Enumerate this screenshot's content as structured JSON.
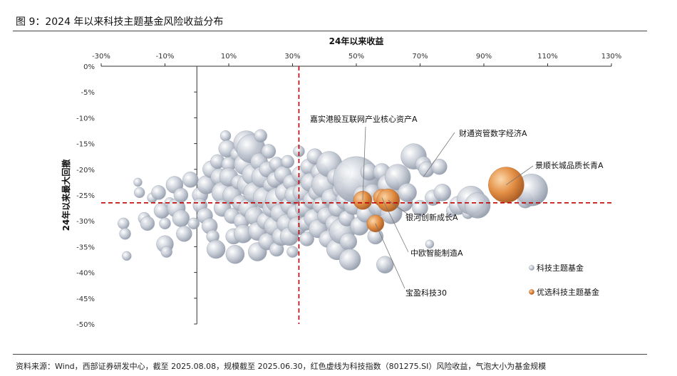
{
  "figure": {
    "title": "图 9：2024 年以来科技主题基金风险收益分布",
    "source": "资料来源：Wind，西部证券研发中心，截至 2025.08.08，规模截至 2025.06.30，红色虚线为科技指数（801275.SI）风险收益，气泡大小为基金规模"
  },
  "colors": {
    "base": "#b8c0cc",
    "highlight": "#d97f2f",
    "ref_line": "#c00000"
  },
  "chart_data": {
    "type": "scatter",
    "xlabel": "24年以来收益",
    "ylabel": "24年以来最大回撤",
    "xlim": [
      -30,
      130
    ],
    "ylim": [
      -50,
      0
    ],
    "x_ticks": [
      "-30%",
      "-10%",
      "10%",
      "30%",
      "50%",
      "70%",
      "90%",
      "110%",
      "130%"
    ],
    "y_ticks": [
      "0%",
      "-5%",
      "-10%",
      "-15%",
      "-20%",
      "-25%",
      "-30%",
      "-35%",
      "-40%",
      "-45%",
      "-50%"
    ],
    "x_axis_position": "top",
    "grid": false,
    "legend_position": "bottom-right",
    "reference": {
      "x": 32,
      "y": -26.5
    },
    "legend": [
      "科技主题基金",
      "优选科技主题基金"
    ],
    "series": [
      {
        "name": "科技主题基金",
        "points": [
          [
            -23,
            -30.5,
            1.6
          ],
          [
            -22.5,
            -32.5,
            1.6
          ],
          [
            -22,
            -36.8,
            1.3
          ],
          [
            -18.5,
            -22.5,
            1.2
          ],
          [
            -18,
            -24.5,
            1.5
          ],
          [
            -16.5,
            -29.5,
            1.7
          ],
          [
            -15.5,
            -30.5,
            2
          ],
          [
            -14,
            -25.5,
            1.4
          ],
          [
            -12,
            -24.5,
            2
          ],
          [
            -11,
            -28,
            2.2
          ],
          [
            -10,
            -30.5,
            1.6
          ],
          [
            -8.5,
            -26.5,
            1.5
          ],
          [
            -10,
            -34.5,
            2.4
          ],
          [
            -9.5,
            -36,
            1.6
          ],
          [
            -7,
            -23,
            2.4
          ],
          [
            -6.5,
            -27.5,
            2.6
          ],
          [
            -5,
            -25,
            2
          ],
          [
            -5,
            -29.5,
            2.4
          ],
          [
            -4,
            -32.5,
            2.2
          ],
          [
            -2,
            -22,
            2.2
          ],
          [
            -1,
            -30.5,
            1.6
          ],
          [
            1,
            -25,
            2.2
          ],
          [
            1,
            -27,
            2
          ],
          [
            3,
            -23,
            2.6
          ],
          [
            2.5,
            -29,
            2.2
          ],
          [
            4.5,
            -20,
            2.4
          ],
          [
            4,
            -31,
            2.2
          ],
          [
            5,
            -33,
            1.8
          ],
          [
            6,
            -35.5,
            2.6
          ],
          [
            6.5,
            -18.5,
            2
          ],
          [
            7,
            -21.5,
            2.4
          ],
          [
            8,
            -24.5,
            3
          ],
          [
            8,
            -27.5,
            2.4
          ],
          [
            9,
            -13.5,
            1.5
          ],
          [
            9.5,
            -16,
            2.4
          ],
          [
            10,
            -19,
            2
          ],
          [
            10,
            -21.5,
            2.6
          ],
          [
            11,
            -25,
            2.6
          ],
          [
            11,
            -29,
            2.2
          ],
          [
            11.5,
            -33,
            2.2
          ],
          [
            12,
            -36.5,
            2.6
          ],
          [
            12.5,
            -17,
            1.8
          ],
          [
            13,
            -22.5,
            2
          ],
          [
            13.5,
            -26.5,
            2.2
          ],
          [
            14,
            -30,
            2.2
          ],
          [
            14.5,
            -32.5,
            2.6
          ],
          [
            15,
            -19,
            3
          ],
          [
            15.5,
            -15,
            3.6
          ],
          [
            16,
            -23,
            3
          ],
          [
            16,
            -27.5,
            2.6
          ],
          [
            17,
            -16,
            4
          ],
          [
            17.5,
            -21,
            3
          ],
          [
            18,
            -24.5,
            3
          ],
          [
            18,
            -29,
            2.6
          ],
          [
            19,
            -32,
            2.6
          ],
          [
            19,
            -36,
            2.6
          ],
          [
            19.5,
            -18.5,
            2.4
          ],
          [
            20,
            -13.5,
            1.8
          ],
          [
            20.5,
            -21.5,
            3
          ],
          [
            21,
            -25.5,
            3
          ],
          [
            21.5,
            -30,
            2.4
          ],
          [
            22,
            -34,
            2.4
          ],
          [
            22,
            -20,
            2.2
          ],
          [
            22.5,
            -16.5,
            2
          ],
          [
            23,
            -23,
            2
          ],
          [
            23.5,
            -27.5,
            2.6
          ],
          [
            24,
            -31,
            2.6
          ],
          [
            24.5,
            -22,
            2.2
          ],
          [
            25,
            -19,
            2
          ],
          [
            25,
            -35.5,
            2
          ],
          [
            25.5,
            -26,
            3.6
          ],
          [
            26,
            -28.5,
            2.6
          ],
          [
            26.5,
            -33,
            2.6
          ],
          [
            27,
            -21,
            2.4
          ],
          [
            27.5,
            -24.5,
            2.6
          ],
          [
            28,
            -30.5,
            2.6
          ],
          [
            28.5,
            -18.5,
            1.8
          ],
          [
            29,
            -27,
            2.4
          ],
          [
            29,
            -33,
            2.6
          ],
          [
            29.5,
            -22.5,
            2.2
          ],
          [
            30,
            -36,
            1.6
          ],
          [
            30.5,
            -25,
            2.6
          ],
          [
            31,
            -28.5,
            2.4
          ],
          [
            31.5,
            -31,
            2.6
          ],
          [
            32,
            -16.5,
            1.6
          ],
          [
            32.5,
            -21,
            2.4
          ],
          [
            33,
            -24.5,
            2.6
          ],
          [
            33.5,
            -27.5,
            2.4
          ],
          [
            34,
            -30.5,
            2
          ],
          [
            34.5,
            -33.5,
            2
          ],
          [
            35,
            -19.5,
            2.2
          ],
          [
            35.5,
            -22.5,
            2.6
          ],
          [
            36,
            -26,
            2.4
          ],
          [
            36.5,
            -29.5,
            2.6
          ],
          [
            37,
            -17.5,
            2.2
          ],
          [
            37.5,
            -24.5,
            2.2
          ],
          [
            38,
            -31.5,
            2.6
          ],
          [
            38.5,
            -20.5,
            2.4
          ],
          [
            39,
            -27,
            2.4
          ],
          [
            40,
            -23,
            3.6
          ],
          [
            40.5,
            -29,
            2.4
          ],
          [
            41,
            -33.5,
            2.4
          ],
          [
            41.5,
            -19,
            3.6
          ],
          [
            42,
            -25.5,
            2.6
          ],
          [
            43,
            -30.5,
            2.4
          ],
          [
            43.5,
            -21.5,
            2.4
          ],
          [
            44,
            -27.5,
            2.4
          ],
          [
            44,
            -35.5,
            3
          ],
          [
            45,
            -24,
            2.2
          ],
          [
            45.5,
            -32,
            3.6
          ],
          [
            46,
            -20.5,
            2.2
          ],
          [
            46.5,
            -26,
            2.6
          ],
          [
            47,
            -29.5,
            2.2
          ],
          [
            47.5,
            -34,
            2.4
          ],
          [
            48,
            -37.5,
            3
          ],
          [
            48.5,
            -23.5,
            2.6
          ],
          [
            49,
            -27,
            2.6
          ],
          [
            50,
            -22,
            6.5
          ],
          [
            51,
            -31,
            2.6
          ],
          [
            52,
            -25,
            2.6
          ],
          [
            53,
            -28.5,
            2.6
          ],
          [
            54,
            -20.5,
            2.4
          ],
          [
            55,
            -24.5,
            2.4
          ],
          [
            56,
            -33,
            2.2
          ],
          [
            57,
            -27,
            3
          ],
          [
            58,
            -20.5,
            2.4
          ],
          [
            58.5,
            -39,
            1.5
          ],
          [
            59,
            -38.5,
            2.4
          ],
          [
            60,
            -23,
            3
          ],
          [
            61,
            -28.5,
            3
          ],
          [
            62,
            -25.5,
            2.2
          ],
          [
            63,
            -21.5,
            3.6
          ],
          [
            65,
            -26.5,
            2.4
          ],
          [
            66,
            -24.5,
            2.6
          ],
          [
            68,
            -17.5,
            3.6
          ],
          [
            70,
            -27.5,
            2.2
          ],
          [
            71,
            -19,
            2.2
          ],
          [
            72,
            -20,
            2.2
          ],
          [
            73,
            -34.5,
            1.2
          ],
          [
            74,
            -25.5,
            2.2
          ],
          [
            76,
            -19.5,
            2.2
          ],
          [
            77,
            -24.5,
            2.4
          ],
          [
            80,
            -28,
            1.6
          ],
          [
            82,
            -27,
            2.6
          ],
          [
            85,
            -28.5,
            1.6
          ],
          [
            86,
            -26,
            4
          ],
          [
            88,
            -27,
            3.6
          ],
          [
            103,
            -26,
            2.2
          ],
          [
            105,
            -24,
            4.5
          ]
        ]
      },
      {
        "name": "优选科技主题基金",
        "points": [
          [
            52,
            -26,
            2.6
          ],
          [
            58,
            -25.5,
            2.4
          ],
          [
            60,
            -26,
            3.2
          ],
          [
            56,
            -30.5,
            2.4
          ],
          [
            97,
            -23,
            5
          ]
        ]
      }
    ],
    "annotations": [
      {
        "text": "嘉实港股互联网产业核心资产A",
        "x": 52,
        "y": -26
      },
      {
        "text": "财通资管数字经济A",
        "x": 71,
        "y": -21.5
      },
      {
        "text": "景顺长城品质长青A",
        "x": 97,
        "y": -23
      },
      {
        "text": "银河创新成长A",
        "x": 60,
        "y": -26
      },
      {
        "text": "中欧智能制造A",
        "x": 58,
        "y": -25.5
      },
      {
        "text": "宝盈科技30",
        "x": 56,
        "y": -30.5
      }
    ]
  }
}
